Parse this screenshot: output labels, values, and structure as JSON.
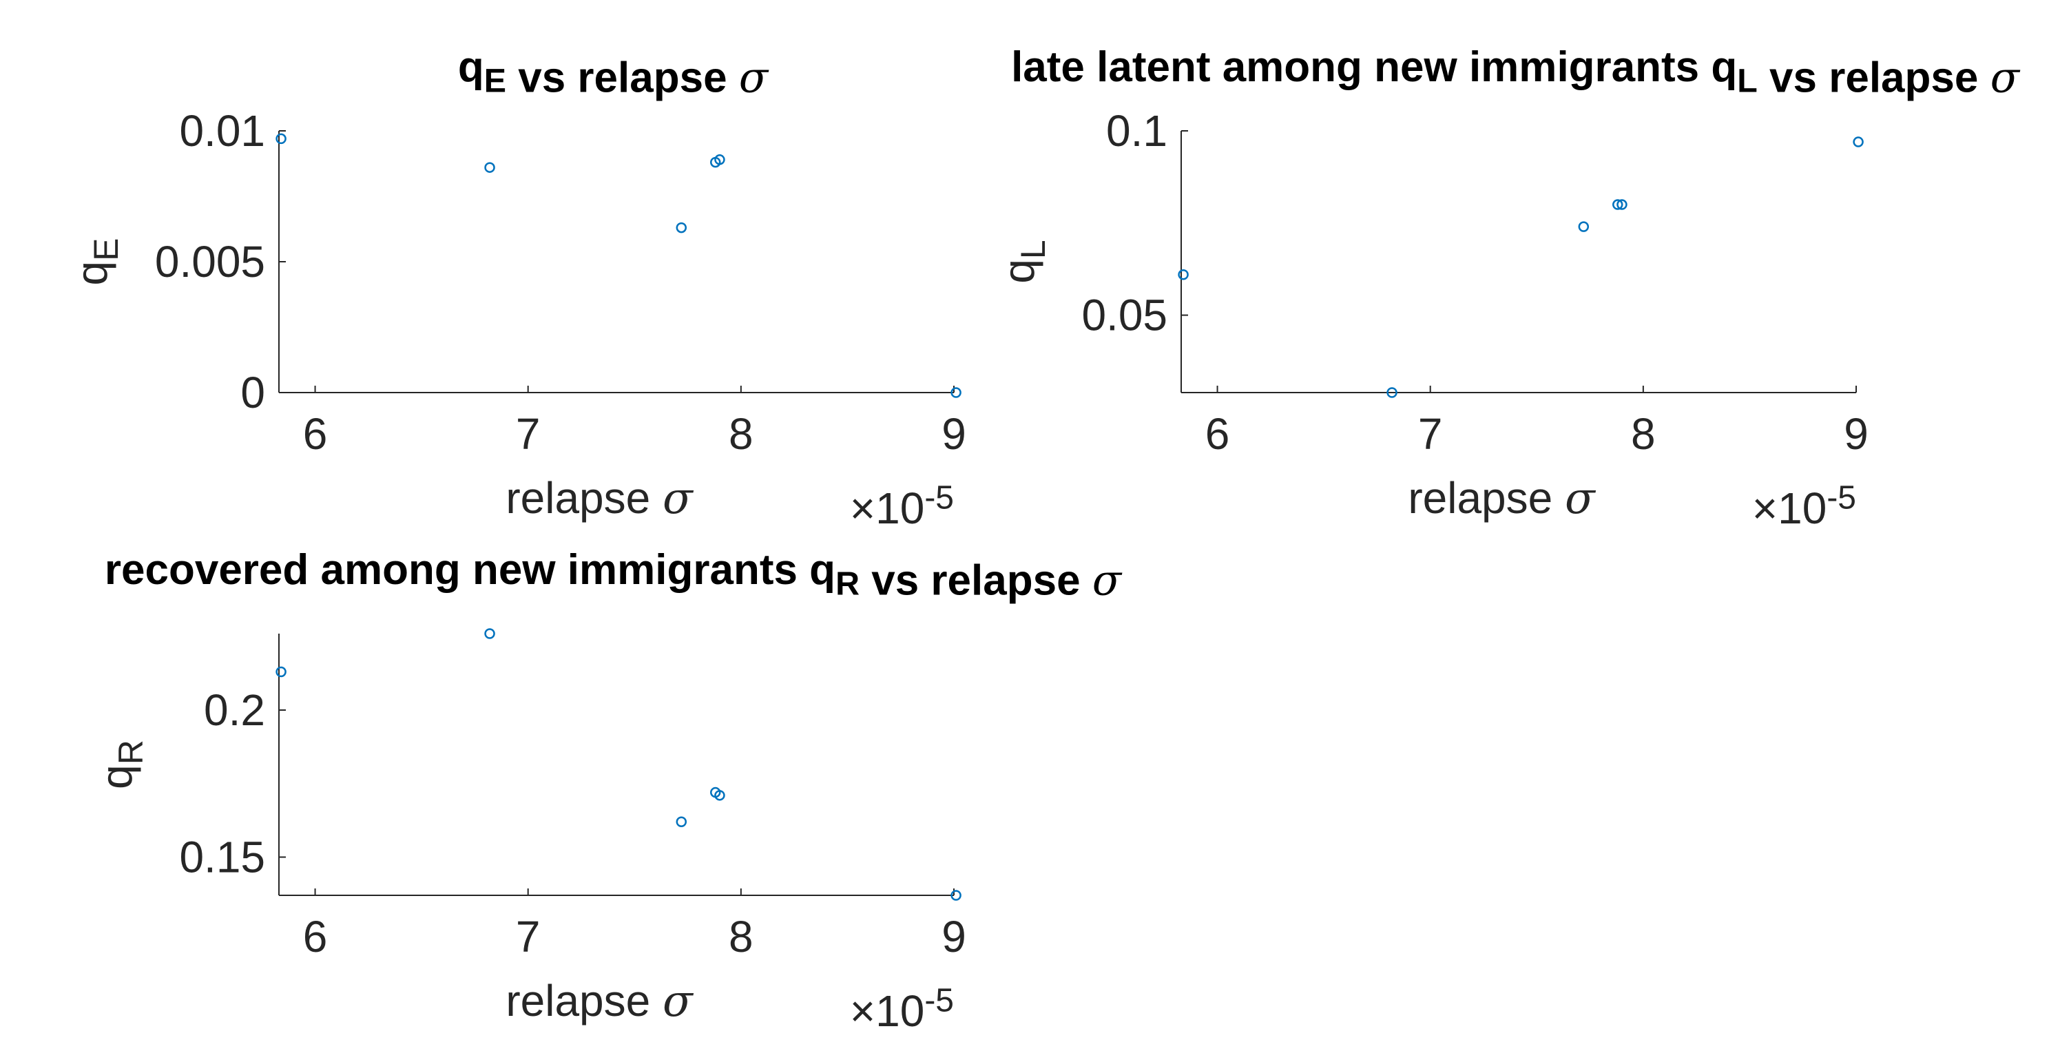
{
  "colors": {
    "marker": "#0072BD",
    "axis": "#262626",
    "title": "#000000"
  },
  "chart_data": [
    {
      "type": "scatter",
      "title": {
        "pre": "q",
        "sub": "E",
        "post": " vs relapse ",
        "sym": "σ"
      },
      "xlabel": {
        "pre": "relapse ",
        "sym": "σ"
      },
      "ylabel": {
        "pre": "q",
        "sub": "E"
      },
      "x_exponent": {
        "times": "×10",
        "exp": "-5"
      },
      "xlim": [
        5.83,
        9.0
      ],
      "ylim": [
        0,
        0.01
      ],
      "xticks": [
        6,
        7,
        8,
        9
      ],
      "xtick_labels": [
        "6",
        "7",
        "8",
        "9"
      ],
      "yticks": [
        0,
        0.005,
        0.01
      ],
      "ytick_labels": [
        "0",
        "0.005",
        "0.01"
      ],
      "x": [
        5.84,
        6.82,
        7.72,
        7.88,
        7.9,
        9.01
      ],
      "y": [
        0.0097,
        0.0086,
        0.0063,
        0.0088,
        0.0089,
        0.0
      ]
    },
    {
      "type": "scatter",
      "title": {
        "pre": "late latent among new immigrants q",
        "sub": "L",
        "post": " vs relapse ",
        "sym": "σ"
      },
      "xlabel": {
        "pre": "relapse ",
        "sym": "σ"
      },
      "ylabel": {
        "pre": "q",
        "sub": "L"
      },
      "x_exponent": {
        "times": "×10",
        "exp": "-5"
      },
      "xlim": [
        5.83,
        9.0
      ],
      "ylim": [
        0.029,
        0.1
      ],
      "xticks": [
        6,
        7,
        8,
        9
      ],
      "xtick_labels": [
        "6",
        "7",
        "8",
        "9"
      ],
      "yticks": [
        0.05,
        0.1
      ],
      "ytick_labels": [
        "0.05",
        "0.1"
      ],
      "x": [
        5.84,
        6.82,
        7.72,
        7.88,
        7.9,
        9.01
      ],
      "y": [
        0.061,
        0.029,
        0.074,
        0.08,
        0.08,
        0.097
      ]
    },
    {
      "type": "scatter",
      "title": {
        "pre": "recovered among new immigrants q",
        "sub": "R",
        "post": " vs relapse ",
        "sym": "σ"
      },
      "xlabel": {
        "pre": "relapse ",
        "sym": "σ"
      },
      "ylabel": {
        "pre": "q",
        "sub": "R"
      },
      "x_exponent": {
        "times": "×10",
        "exp": "-5"
      },
      "xlim": [
        5.83,
        9.0
      ],
      "ylim": [
        0.137,
        0.226
      ],
      "xticks": [
        6,
        7,
        8,
        9
      ],
      "xtick_labels": [
        "6",
        "7",
        "8",
        "9"
      ],
      "yticks": [
        0.15,
        0.2
      ],
      "ytick_labels": [
        "0.15",
        "0.2"
      ],
      "x": [
        5.84,
        6.82,
        7.72,
        7.88,
        7.9,
        9.01
      ],
      "y": [
        0.213,
        0.226,
        0.162,
        0.172,
        0.171,
        0.137
      ]
    }
  ]
}
